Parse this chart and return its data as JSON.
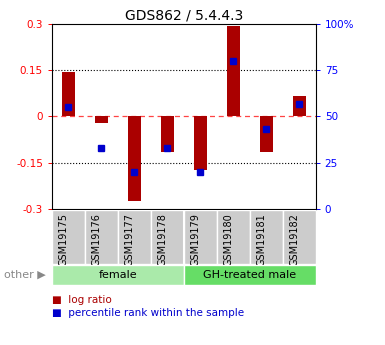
{
  "title": "GDS862 / 5.4.4.3",
  "samples": [
    "GSM19175",
    "GSM19176",
    "GSM19177",
    "GSM19178",
    "GSM19179",
    "GSM19180",
    "GSM19181",
    "GSM19182"
  ],
  "log_ratio": [
    0.145,
    -0.02,
    -0.275,
    -0.115,
    -0.175,
    0.295,
    -0.115,
    0.065
  ],
  "percentile_rank": [
    55,
    33,
    20,
    33,
    20,
    80,
    43,
    57
  ],
  "groups": [
    {
      "label": "female",
      "start": 0,
      "end": 4,
      "color": "#aaeaaa"
    },
    {
      "label": "GH-treated male",
      "start": 4,
      "end": 8,
      "color": "#66dd66"
    }
  ],
  "ylim_left": [
    -0.3,
    0.3
  ],
  "ylim_right": [
    0,
    100
  ],
  "left_ticks": [
    -0.3,
    -0.15,
    0,
    0.15,
    0.3
  ],
  "right_ticks": [
    0,
    25,
    50,
    75,
    100
  ],
  "left_tick_labels": [
    "-0.3",
    "-0.15",
    "0",
    "0.15",
    "0.3"
  ],
  "right_tick_labels": [
    "0",
    "25",
    "50",
    "75",
    "100%"
  ],
  "bar_color": "#aa0000",
  "dot_color": "#0000cc",
  "zero_line_color": "#ff4444",
  "bar_width": 0.4,
  "dot_size": 5,
  "other_label": "other",
  "legend_logratio": "log ratio",
  "legend_percentile": "percentile rank within the sample",
  "title_fontsize": 10,
  "tick_fontsize": 7.5,
  "label_fontsize": 7,
  "group_fontsize": 8
}
